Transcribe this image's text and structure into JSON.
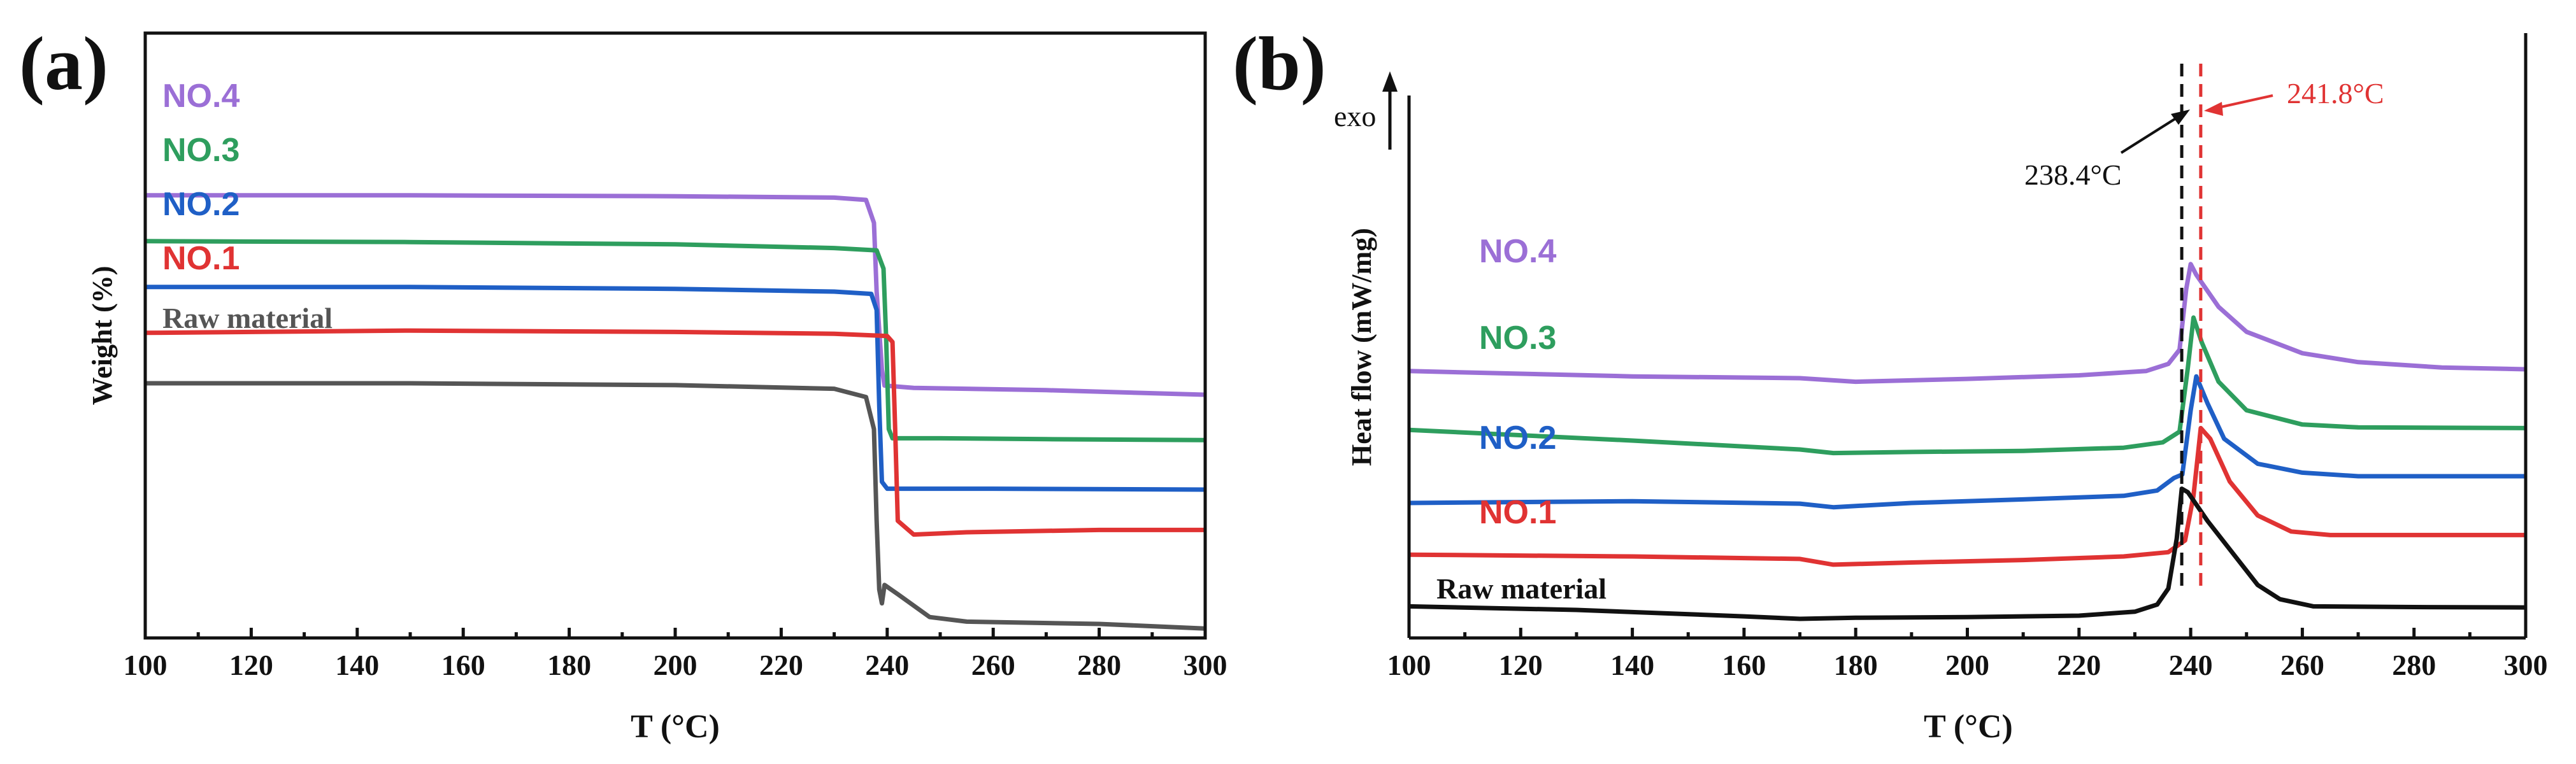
{
  "chart_data": [
    {
      "panel": "(a)",
      "type": "line",
      "xlabel": "T (°C)",
      "ylabel": "Weight (%)",
      "xlim": [
        100,
        300
      ],
      "ylim": [
        0,
        100
      ],
      "x_ticks": [
        100,
        120,
        140,
        160,
        180,
        200,
        220,
        240,
        260,
        280,
        300
      ],
      "series": [
        {
          "name": "NO.4",
          "color": "#9b6fd6",
          "points": [
            [
              100,
              91
            ],
            [
              150,
              91
            ],
            [
              200,
              90.8
            ],
            [
              230,
              90.5
            ],
            [
              236,
              90
            ],
            [
              237.5,
              85
            ],
            [
              238,
              70
            ],
            [
              239,
              53
            ],
            [
              239.5,
              49.5
            ],
            [
              245,
              49
            ],
            [
              270,
              48.5
            ],
            [
              300,
              47.5
            ]
          ]
        },
        {
          "name": "NO.3",
          "color": "#2e9e5e",
          "points": [
            [
              100,
              81
            ],
            [
              150,
              80.8
            ],
            [
              200,
              80.3
            ],
            [
              230,
              79.5
            ],
            [
              238,
              79
            ],
            [
              239.3,
              75
            ],
            [
              239.8,
              60
            ],
            [
              240.3,
              40
            ],
            [
              241,
              38
            ],
            [
              250,
              38
            ],
            [
              270,
              37.8
            ],
            [
              300,
              37.6
            ]
          ]
        },
        {
          "name": "NO.2",
          "color": "#1f5fc6",
          "points": [
            [
              100,
              71
            ],
            [
              150,
              71
            ],
            [
              200,
              70.6
            ],
            [
              230,
              70
            ],
            [
              237,
              69.5
            ],
            [
              238,
              66
            ],
            [
              238.5,
              45
            ],
            [
              239,
              28.5
            ],
            [
              240,
              27
            ],
            [
              260,
              27
            ],
            [
              300,
              26.8
            ]
          ]
        },
        {
          "name": "NO.1",
          "color": "#e03333",
          "points": [
            [
              100,
              61
            ],
            [
              150,
              61.5
            ],
            [
              200,
              61.2
            ],
            [
              230,
              60.8
            ],
            [
              240,
              60.3
            ],
            [
              241,
              59
            ],
            [
              241.5,
              40
            ],
            [
              242,
              20
            ],
            [
              245,
              17
            ],
            [
              255,
              17.5
            ],
            [
              280,
              18
            ],
            [
              300,
              18
            ]
          ]
        },
        {
          "name": "Raw material",
          "color": "#555555",
          "points": [
            [
              100,
              50
            ],
            [
              150,
              50
            ],
            [
              200,
              49.6
            ],
            [
              230,
              48.8
            ],
            [
              236,
              47
            ],
            [
              237.5,
              40
            ],
            [
              238,
              20
            ],
            [
              238.5,
              5
            ],
            [
              239,
              2
            ],
            [
              239.5,
              6
            ],
            [
              242,
              4
            ],
            [
              248,
              -1
            ],
            [
              255,
              -2
            ],
            [
              280,
              -2.5
            ],
            [
              300,
              -3.5
            ]
          ]
        }
      ]
    },
    {
      "panel": "(b)",
      "type": "line",
      "xlabel": "T (°C)",
      "ylabel": "Heat flow (mW/mg)",
      "exo_label": "exo",
      "xlim": [
        100,
        300
      ],
      "ylim": [
        0,
        100
      ],
      "x_ticks": [
        100,
        120,
        140,
        160,
        180,
        200,
        220,
        240,
        260,
        280,
        300
      ],
      "vlines": [
        {
          "x": 238.4,
          "color": "#111111",
          "label": "238.4°C"
        },
        {
          "x": 241.8,
          "color": "#e03333",
          "label": "241.8°C"
        }
      ],
      "series": [
        {
          "name": "NO.4",
          "color": "#9b6fd6",
          "points": [
            [
              100,
              67
            ],
            [
              140,
              65.5
            ],
            [
              170,
              65
            ],
            [
              180,
              64
            ],
            [
              200,
              64.8
            ],
            [
              220,
              65.8
            ],
            [
              232,
              67
            ],
            [
              236,
              69
            ],
            [
              238,
              73
            ],
            [
              239.2,
              90
            ],
            [
              240,
              97
            ],
            [
              241,
              94
            ],
            [
              245,
              85
            ],
            [
              250,
              78
            ],
            [
              260,
              72
            ],
            [
              270,
              69.5
            ],
            [
              285,
              68
            ],
            [
              300,
              67.5
            ]
          ]
        },
        {
          "name": "NO.3",
          "color": "#2e9e5e",
          "points": [
            [
              100,
              50.5
            ],
            [
              140,
              47.5
            ],
            [
              170,
              45
            ],
            [
              176,
              44
            ],
            [
              190,
              44.3
            ],
            [
              210,
              44.6
            ],
            [
              228,
              45.5
            ],
            [
              235,
              47
            ],
            [
              238,
              50
            ],
            [
              239.5,
              68
            ],
            [
              240.5,
              82
            ],
            [
              242,
              75
            ],
            [
              245,
              64
            ],
            [
              250,
              56
            ],
            [
              260,
              52
            ],
            [
              270,
              51.2
            ],
            [
              300,
              51
            ]
          ]
        },
        {
          "name": "NO.2",
          "color": "#1f5fc6",
          "points": [
            [
              100,
              30
            ],
            [
              140,
              30.5
            ],
            [
              170,
              29.8
            ],
            [
              176,
              28.8
            ],
            [
              190,
              30
            ],
            [
              210,
              31
            ],
            [
              228,
              32
            ],
            [
              234,
              33.5
            ],
            [
              237,
              37
            ],
            [
              238.5,
              38
            ],
            [
              240,
              56
            ],
            [
              241,
              65.5
            ],
            [
              243,
              58
            ],
            [
              246,
              48
            ],
            [
              252,
              41
            ],
            [
              260,
              38.5
            ],
            [
              270,
              37.5
            ],
            [
              300,
              37.5
            ]
          ]
        },
        {
          "name": "NO.1",
          "color": "#e03333",
          "points": [
            [
              100,
              15.5
            ],
            [
              140,
              15
            ],
            [
              170,
              14.3
            ],
            [
              176,
              12.7
            ],
            [
              190,
              13.3
            ],
            [
              210,
              14
            ],
            [
              228,
              15
            ],
            [
              236,
              16.2
            ],
            [
              239,
              19.5
            ],
            [
              240.5,
              32
            ],
            [
              241.8,
              51
            ],
            [
              243.5,
              48
            ],
            [
              247,
              36
            ],
            [
              252,
              26.5
            ],
            [
              258,
              22
            ],
            [
              265,
              21
            ],
            [
              300,
              21
            ]
          ]
        },
        {
          "name": "Raw material",
          "color": "#111111",
          "points": [
            [
              100,
              1
            ],
            [
              130,
              0
            ],
            [
              160,
              -1.8
            ],
            [
              170,
              -2.5
            ],
            [
              180,
              -2.2
            ],
            [
              200,
              -2
            ],
            [
              220,
              -1.6
            ],
            [
              230,
              -0.5
            ],
            [
              234,
              1.5
            ],
            [
              236,
              6
            ],
            [
              237.5,
              20
            ],
            [
              238.4,
              34
            ],
            [
              239.5,
              33
            ],
            [
              243,
              25
            ],
            [
              248,
              15
            ],
            [
              252,
              7
            ],
            [
              256,
              3
            ],
            [
              262,
              1
            ],
            [
              280,
              0.8
            ],
            [
              300,
              0.7
            ]
          ]
        }
      ]
    }
  ],
  "panels": {
    "a": {
      "panel_label": "(a)",
      "xlabel": "T (°C)",
      "ylabel": "Weight (%)",
      "ticks": [
        "100",
        "120",
        "140",
        "160",
        "180",
        "200",
        "220",
        "240",
        "260",
        "280",
        "300"
      ],
      "labels": {
        "no4": "NO.4",
        "no3": "NO.3",
        "no2": "NO.2",
        "no1": "NO.1",
        "raw": "Raw material"
      }
    },
    "b": {
      "panel_label": "(b)",
      "xlabel": "T (°C)",
      "ylabel": "Heat flow (mW/mg)",
      "exo": "exo",
      "ann_black": "238.4°C",
      "ann_red": "241.8°C",
      "ticks": [
        "100",
        "120",
        "140",
        "160",
        "180",
        "200",
        "220",
        "240",
        "260",
        "280",
        "300"
      ],
      "labels": {
        "no4": "NO.4",
        "no3": "NO.3",
        "no2": "NO.2",
        "no1": "NO.1",
        "raw": "Raw material"
      }
    }
  },
  "colors": {
    "no4": "#9b6fd6",
    "no3": "#2e9e5e",
    "no2": "#1f5fc6",
    "no1": "#e03333",
    "raw_a": "#555555",
    "raw_b": "#111111",
    "axis": "#111111"
  }
}
